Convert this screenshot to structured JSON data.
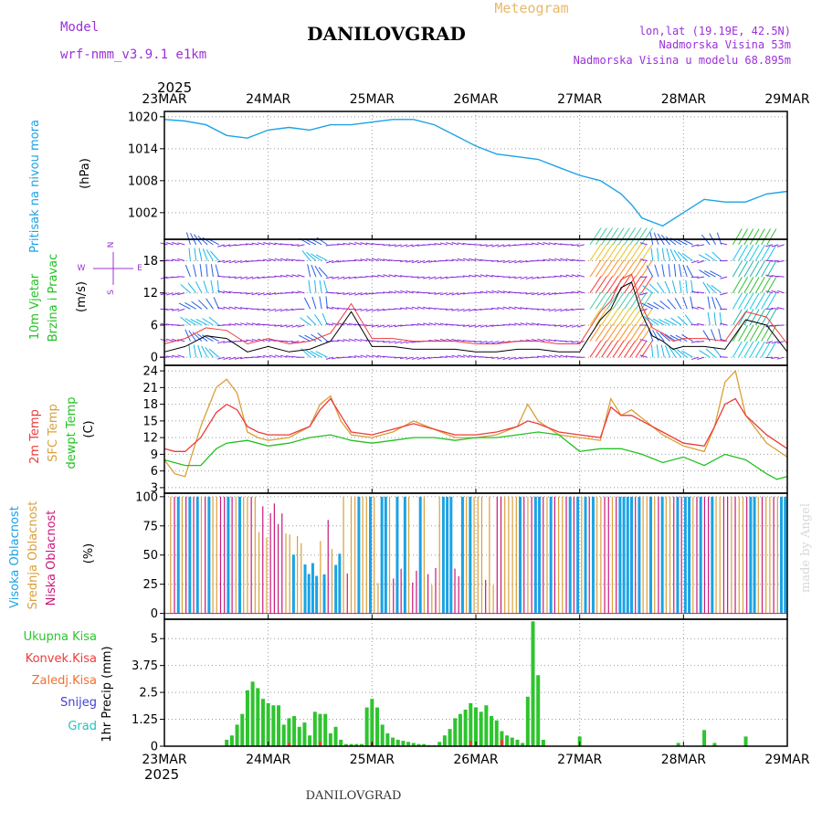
{
  "header": {
    "model_label": "Model",
    "model_name": "wrf-nmm_v3.9.1 e1km",
    "station": "DANILOVGRAD",
    "meteogram": "Meteogram",
    "lonlat": "lon,lat (19.19E, 42.5N)",
    "elevation": "Nadmorska Visina 53m",
    "model_elevation": "Nadmorska Visina u modelu 68.895m",
    "year_top": "2025",
    "year_bottom": "2025",
    "footer_station": "DANILOVGRAD",
    "credit": "made by Angel"
  },
  "colors": {
    "pressure": "#1ca3e6",
    "temp2m": "#ee3b3b",
    "sfc": "#d9a03a",
    "dewpt": "#22c222",
    "wind_purple": "#8a2be2",
    "wind_blue": "#2a5ee6",
    "wind_cyan": "#16b8e8",
    "cloud_high": "#1aa3e6",
    "cloud_mid": "#d9a03a",
    "cloud_low": "#c8187a",
    "precip_total": "#2ec42e",
    "precip_conv": "#ee3b3b",
    "grid": "#999999"
  },
  "chart_data": [
    {
      "type": "line",
      "panel": "pressure",
      "ylabel_colored": "Pritisak na nivou mora",
      "unit": "(hPa)",
      "ylim": [
        997,
        1021
      ],
      "yticks": [
        "1020",
        "1014",
        "1008",
        "1002"
      ],
      "ytick_values": [
        1020,
        1014,
        1008,
        1002
      ],
      "x_day_start": 0,
      "x_day_end": 6,
      "series": [
        {
          "x": [
            0,
            0.2,
            0.4,
            0.6,
            0.8,
            1.0,
            1.2,
            1.4,
            1.6,
            1.8,
            2.0,
            2.2,
            2.4,
            2.6,
            2.8,
            3.0,
            3.2,
            3.4,
            3.6,
            3.8,
            4.0,
            4.2,
            4.4,
            4.5,
            4.6,
            4.8,
            5.0,
            5.2,
            5.4,
            5.6,
            5.8,
            6.0
          ],
          "y": [
            1019.5,
            1019.2,
            1018.5,
            1016.5,
            1016,
            1017.5,
            1018,
            1017.5,
            1018.5,
            1018.5,
            1019,
            1019.5,
            1019.5,
            1018.5,
            1016.5,
            1014.5,
            1013,
            1012.5,
            1012,
            1010.5,
            1009,
            1008,
            1005.5,
            1003.5,
            1001,
            999.5,
            1002,
            1004.5,
            1004,
            1004,
            1005.5,
            1006
          ]
        }
      ]
    },
    {
      "type": "scatter",
      "panel": "wind",
      "ylabel": "10m Vjetar",
      "ylabel2": "Brzina i Pravac",
      "unit": "(m/s)",
      "compass": [
        "N",
        "W",
        "E",
        "S"
      ],
      "ylim": [
        -1.5,
        22
      ],
      "yticks": [
        "18",
        "12",
        "6",
        "0"
      ],
      "ytick_values": [
        18,
        12,
        6,
        0
      ],
      "series": [
        {
          "name": "speed",
          "x": [
            0,
            0.2,
            0.4,
            0.6,
            0.8,
            1.0,
            1.2,
            1.4,
            1.6,
            1.8,
            2.0,
            2.2,
            2.4,
            2.6,
            2.8,
            3.0,
            3.2,
            3.4,
            3.6,
            3.8,
            4.0,
            4.1,
            4.2,
            4.3,
            4.4,
            4.5,
            4.6,
            4.7,
            4.8,
            4.9,
            5.0,
            5.2,
            5.4,
            5.6,
            5.8,
            6.0
          ],
          "y": [
            1,
            2,
            4,
            3.5,
            1,
            2,
            1,
            1.5,
            3,
            8.5,
            2,
            2,
            1.5,
            1.5,
            1.5,
            1,
            1,
            1.5,
            1.5,
            1,
            1,
            4,
            7,
            9,
            13,
            14,
            8,
            4,
            3,
            1.5,
            2,
            2,
            1.5,
            7,
            6,
            1
          ]
        }
      ]
    },
    {
      "type": "line",
      "panel": "temperature",
      "ylabel1": "2m Temp",
      "ylabel2": "SFC Temp",
      "ylabel3": "dewpt Temp",
      "unit": "(C)",
      "ylim": [
        2,
        25
      ],
      "yticks": [
        "24",
        "21",
        "18",
        "15",
        "12",
        "9",
        "6",
        "3"
      ],
      "ytick_values": [
        24,
        21,
        18,
        15,
        12,
        9,
        6,
        3
      ],
      "series": [
        {
          "name": "2m Temp",
          "x": [
            0,
            0.1,
            0.2,
            0.35,
            0.5,
            0.6,
            0.7,
            0.8,
            0.9,
            1.0,
            1.2,
            1.4,
            1.5,
            1.6,
            1.7,
            1.8,
            2.0,
            2.2,
            2.4,
            2.6,
            2.8,
            3.0,
            3.2,
            3.4,
            3.5,
            3.6,
            3.8,
            4.0,
            4.2,
            4.3,
            4.4,
            4.5,
            4.6,
            4.8,
            5.0,
            5.2,
            5.3,
            5.4,
            5.5,
            5.6,
            5.8,
            6.0
          ],
          "y": [
            10,
            9.5,
            9.5,
            12,
            16.5,
            18,
            17,
            14,
            13,
            12.5,
            12.5,
            14,
            17,
            19,
            16,
            13,
            12.5,
            13.5,
            14.5,
            13.5,
            12.5,
            12.5,
            13,
            14,
            15,
            14.5,
            13,
            12.5,
            12,
            17.5,
            16,
            16,
            15,
            13,
            11,
            10.5,
            14,
            18,
            19,
            16,
            12.5,
            10
          ]
        },
        {
          "name": "SFC Temp",
          "x": [
            0,
            0.1,
            0.2,
            0.35,
            0.5,
            0.6,
            0.7,
            0.8,
            0.9,
            1.0,
            1.2,
            1.4,
            1.5,
            1.6,
            1.7,
            1.8,
            2.0,
            2.2,
            2.4,
            2.6,
            2.8,
            3.0,
            3.2,
            3.4,
            3.5,
            3.6,
            3.8,
            4.0,
            4.2,
            4.3,
            4.4,
            4.5,
            4.6,
            4.8,
            5.0,
            5.2,
            5.3,
            5.4,
            5.5,
            5.6,
            5.8,
            6.0
          ],
          "y": [
            8,
            5.5,
            5,
            14,
            21,
            22.5,
            20,
            13,
            12,
            11.5,
            12,
            14,
            18,
            19.5,
            15,
            12.5,
            12,
            13,
            15,
            13.5,
            12,
            12,
            12.5,
            14,
            18,
            15,
            12.5,
            12,
            11.5,
            19,
            16,
            17,
            15.5,
            12.5,
            10.5,
            9.5,
            14,
            22,
            24,
            16,
            11,
            8.5
          ]
        },
        {
          "name": "dewpt Temp",
          "x": [
            0,
            0.2,
            0.35,
            0.5,
            0.6,
            0.8,
            1.0,
            1.2,
            1.4,
            1.6,
            1.8,
            2.0,
            2.2,
            2.4,
            2.6,
            2.8,
            3.0,
            3.2,
            3.4,
            3.6,
            3.8,
            4.0,
            4.2,
            4.4,
            4.6,
            4.8,
            5.0,
            5.2,
            5.4,
            5.6,
            5.8,
            5.9,
            6.0
          ],
          "y": [
            8,
            7,
            7,
            10,
            11,
            11.5,
            10.5,
            11,
            12,
            12.5,
            11.5,
            11,
            11.5,
            12,
            12,
            11.5,
            12,
            12,
            12.5,
            13,
            12.5,
            9.5,
            10,
            10,
            9,
            7.5,
            8.5,
            7,
            9,
            8,
            5.5,
            4.5,
            5
          ]
        }
      ]
    },
    {
      "type": "bar",
      "panel": "clouds",
      "ylabel1": "Visoka Oblacnost",
      "ylabel2": "Srednja Oblacnost",
      "ylabel3": "Niska Oblacnost",
      "unit": "(%)",
      "ylim": [
        -5,
        103
      ],
      "yticks": [
        "100",
        "75",
        "50",
        "25",
        "0"
      ],
      "ytick_values": [
        100,
        75,
        50,
        25,
        0
      ]
    },
    {
      "type": "bar",
      "panel": "precipitation",
      "legend": [
        "Ukupna Kisa",
        "Konvek.Kisa",
        "Zaledj.Kisa",
        "Snijeg",
        "Grad"
      ],
      "unit": "1hr Precip (mm)",
      "ylim": [
        0,
        5.9
      ],
      "yticks": [
        "5",
        "3.75",
        "2.5",
        "1.25",
        "0"
      ],
      "ytick_values": [
        5,
        3.75,
        2.5,
        1.25,
        0
      ],
      "series": [
        {
          "name": "Ukupna Kisa",
          "x": [
            0.6,
            0.65,
            0.7,
            0.75,
            0.8,
            0.85,
            0.9,
            0.95,
            1.0,
            1.05,
            1.1,
            1.15,
            1.2,
            1.25,
            1.3,
            1.35,
            1.4,
            1.45,
            1.5,
            1.55,
            1.6,
            1.65,
            1.7,
            1.75,
            1.8,
            1.85,
            1.9,
            1.95,
            2.0,
            2.05,
            2.1,
            2.15,
            2.2,
            2.25,
            2.3,
            2.35,
            2.4,
            2.45,
            2.5,
            2.55,
            2.6,
            2.65,
            2.7,
            2.75,
            2.8,
            2.85,
            2.9,
            2.95,
            3.0,
            3.05,
            3.1,
            3.15,
            3.2,
            3.25,
            3.3,
            3.35,
            3.4,
            3.45,
            3.5,
            3.55,
            3.6,
            3.65,
            4.0,
            4.95,
            5.2,
            5.3,
            5.6
          ],
          "y": [
            0.3,
            0.5,
            1.0,
            1.5,
            2.6,
            3.0,
            2.7,
            2.2,
            2.0,
            1.9,
            1.9,
            1.0,
            1.3,
            1.4,
            0.9,
            1.1,
            0.5,
            1.6,
            1.5,
            1.5,
            0.6,
            0.9,
            0.3,
            0.1,
            0.1,
            0.1,
            0.1,
            1.8,
            2.2,
            1.8,
            1.0,
            0.6,
            0.4,
            0.3,
            0.25,
            0.2,
            0.15,
            0.1,
            0.1,
            0.05,
            0.05,
            0.2,
            0.5,
            0.8,
            1.3,
            1.5,
            1.7,
            2.0,
            1.8,
            1.6,
            1.9,
            1.4,
            1.2,
            0.7,
            0.5,
            0.4,
            0.3,
            0.15,
            2.3,
            5.8,
            3.3,
            0.3,
            0.45,
            0.15,
            0.75,
            0.15,
            0.45
          ]
        },
        {
          "name": "Konvek.Kisa",
          "x": [
            1.2,
            1.5,
            2.0,
            2.95,
            3.25
          ],
          "y": [
            0.15,
            0.2,
            0.15,
            0.25,
            0.3
          ]
        }
      ]
    }
  ],
  "x_axis": {
    "ticks": [
      "23MAR",
      "24MAR",
      "25MAR",
      "26MAR",
      "27MAR",
      "28MAR",
      "29MAR"
    ]
  }
}
